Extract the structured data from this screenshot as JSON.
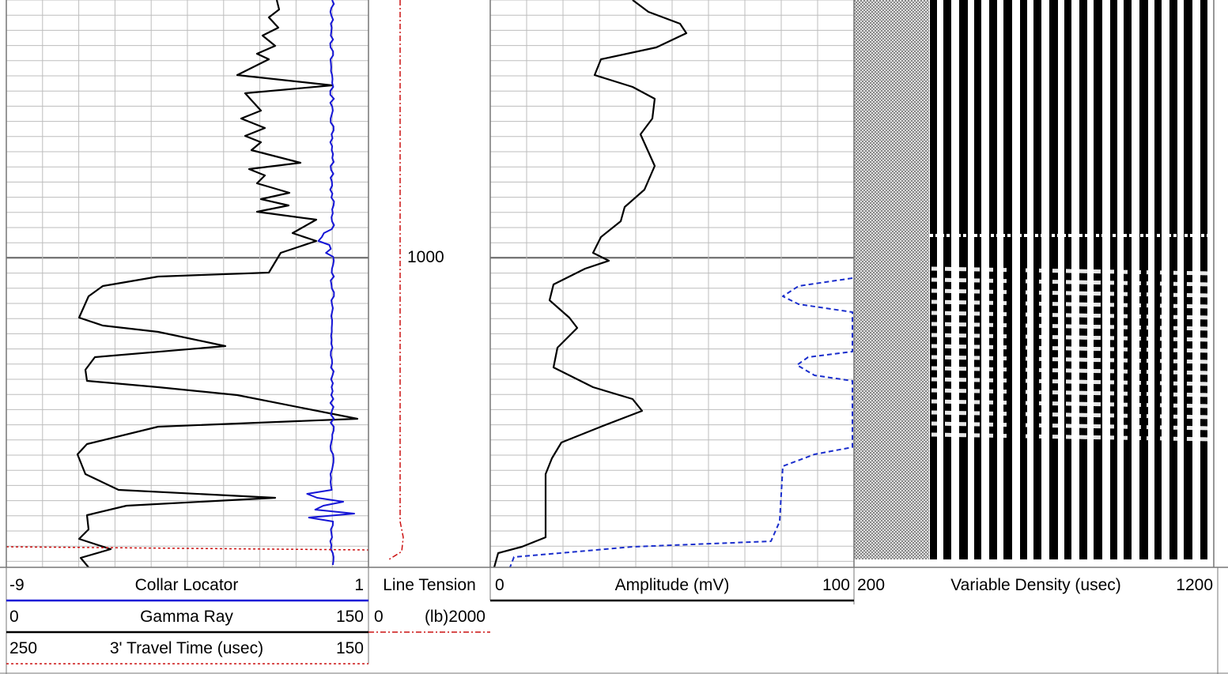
{
  "chart_data": [
    {
      "type": "line",
      "track": "left",
      "series": [
        {
          "name": "Collar Locator",
          "scale": [
            -9,
            1
          ],
          "color": "#1515d6",
          "style": "solid"
        },
        {
          "name": "Gamma Ray",
          "scale": [
            0,
            150
          ],
          "color": "#000000",
          "style": "solid"
        },
        {
          "name": "3' Travel Time (usec)",
          "scale": [
            250,
            150
          ],
          "color": "#cc1111",
          "style": "dotted"
        }
      ]
    },
    {
      "type": "line",
      "track": "depth",
      "depth_label": "1000",
      "series": [
        {
          "name": "Line Tension",
          "unit": "(lb)",
          "scale": [
            0,
            2000
          ],
          "color": "#cc1111",
          "style": "dash-dot"
        }
      ]
    },
    {
      "type": "line",
      "track": "amplitude",
      "series": [
        {
          "name": "Amplitude (mV)",
          "scale": [
            0,
            100
          ],
          "color": "#000000",
          "style": "solid"
        },
        {
          "name": "",
          "color": "#1a2ecc",
          "style": "dashed"
        }
      ]
    },
    {
      "type": "heatmap",
      "track": "vdl",
      "title": "Variable Density (usec)",
      "xlim": [
        200,
        1200
      ]
    }
  ],
  "headers": {
    "collar": {
      "min": "-9",
      "name": "Collar Locator",
      "max": "1"
    },
    "gamma": {
      "min": "0",
      "name": "Gamma Ray",
      "max": "150"
    },
    "travel": {
      "min": "250",
      "name": "3' Travel Time (usec)",
      "max": "150"
    },
    "tension": {
      "name": "Line Tension",
      "min": "0",
      "max": "(lb)2000"
    },
    "amplitude": {
      "min": "0",
      "name": "Amplitude (mV)",
      "max": "100"
    },
    "vdl": {
      "min": "200",
      "name": "Variable Density (usec)",
      "max": "1200"
    }
  },
  "depth_label": "1000"
}
